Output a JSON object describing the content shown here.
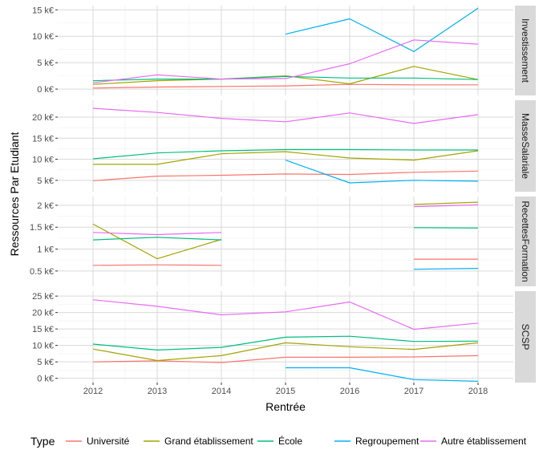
{
  "chart_data": {
    "type": "line",
    "xlabel": "Rentrée",
    "ylabel": "Ressources Par Etudiant",
    "x": [
      2012,
      2013,
      2014,
      2015,
      2016,
      2017,
      2018
    ],
    "x_tick_labels": [
      "2012",
      "2013",
      "2014",
      "2015",
      "2016",
      "2017",
      "2018"
    ],
    "legend": {
      "title": "Type",
      "position": "bottom",
      "entries": [
        "Université",
        "Grand établissement",
        "École",
        "Regroupement",
        "Autre établissement"
      ]
    },
    "colors": {
      "Université": "#F8766D",
      "Grand établissement": "#A3A500",
      "École": "#00BF7D",
      "Regroupement": "#00B0F6",
      "Autre établissement": "#E76BF3"
    },
    "grid": true,
    "facets": [
      {
        "label": "Investissement",
        "ylim": [
          -1200,
          15800
        ],
        "y_ticks": [
          0,
          5000,
          10000,
          15000
        ],
        "y_tick_labels": [
          "0 k€",
          "5 k€",
          "10 k€",
          "15 k€"
        ],
        "series": [
          {
            "name": "Université",
            "values": [
              200,
              400,
              500,
              600,
              900,
              800,
              800
            ]
          },
          {
            "name": "Grand établissement",
            "values": [
              900,
              1600,
              1900,
              2500,
              1000,
              4300,
              1800
            ]
          },
          {
            "name": "École",
            "values": [
              1600,
              1900,
              1900,
              2400,
              2100,
              2100,
              1800
            ]
          },
          {
            "name": "Regroupement",
            "values": [
              null,
              null,
              null,
              10400,
              13300,
              7100,
              15300
            ]
          },
          {
            "name": "Autre établissement",
            "values": [
              1200,
              2700,
              1900,
              2000,
              4800,
              9300,
              8500
            ]
          }
        ]
      },
      {
        "label": "MasseSalariale",
        "ylim": [
          2300,
          24000
        ],
        "y_ticks": [
          5000,
          10000,
          15000,
          20000
        ],
        "y_tick_labels": [
          "5 k€",
          "10 k€",
          "15 k€",
          "20 k€"
        ],
        "series": [
          {
            "name": "Université",
            "values": [
              4900,
              6000,
              6200,
              6500,
              6400,
              6900,
              7200
            ]
          },
          {
            "name": "Grand établissement",
            "values": [
              8800,
              8800,
              11300,
              11800,
              10300,
              9800,
              12000
            ]
          },
          {
            "name": "École",
            "values": [
              10100,
              11500,
              12000,
              12300,
              12300,
              12200,
              12200
            ]
          },
          {
            "name": "Regroupement",
            "values": [
              null,
              null,
              null,
              9800,
              4400,
              5000,
              4800
            ]
          },
          {
            "name": "Autre établissement",
            "values": [
              22100,
              21100,
              19700,
              18900,
              21000,
              18500,
              20600
            ]
          }
        ]
      },
      {
        "label": "RecettesFormation",
        "ylim": [
          0.15,
          2.2
        ],
        "y_ticks": [
          0.5,
          1,
          1.5,
          2
        ],
        "y_tick_labels": [
          "0.5 k€",
          "1 k€",
          "1.5 k€",
          "2 k€"
        ],
        "y_unit": "k€",
        "series": [
          {
            "name": "Université",
            "values": [
              0.63,
              0.64,
              0.63,
              null,
              null,
              0.77,
              0.77
            ]
          },
          {
            "name": "Grand établissement",
            "values": [
              1.57,
              0.78,
              1.22,
              null,
              null,
              2.02,
              2.07
            ]
          },
          {
            "name": "École",
            "values": [
              1.21,
              1.27,
              1.21,
              null,
              null,
              1.49,
              1.48
            ]
          },
          {
            "name": "Regroupement",
            "values": [
              null,
              null,
              null,
              null,
              null,
              0.54,
              0.56
            ]
          },
          {
            "name": "Autre établissement",
            "values": [
              1.38,
              1.33,
              1.38,
              null,
              null,
              1.97,
              2.01
            ]
          }
        ]
      },
      {
        "label": "SCSP",
        "ylim": [
          -1300,
          26500
        ],
        "y_ticks": [
          0,
          5000,
          10000,
          15000,
          20000,
          25000
        ],
        "y_tick_labels": [
          "0 k€",
          "5 k€",
          "10 k€",
          "15 k€",
          "20 k€",
          "25 k€"
        ],
        "series": [
          {
            "name": "Université",
            "values": [
              5000,
              5300,
              4800,
              6400,
              6400,
              6500,
              6900
            ]
          },
          {
            "name": "Grand établissement",
            "values": [
              8900,
              5400,
              6900,
              10800,
              9600,
              8800,
              10800
            ]
          },
          {
            "name": "École",
            "values": [
              10400,
              8600,
              9400,
              12500,
              12800,
              11200,
              11300
            ]
          },
          {
            "name": "Regroupement",
            "values": [
              null,
              null,
              null,
              3200,
              3200,
              -400,
              -900
            ]
          },
          {
            "name": "Autre établissement",
            "values": [
              23900,
              21900,
              19300,
              20200,
              23200,
              14900,
              16800
            ]
          }
        ]
      }
    ]
  }
}
